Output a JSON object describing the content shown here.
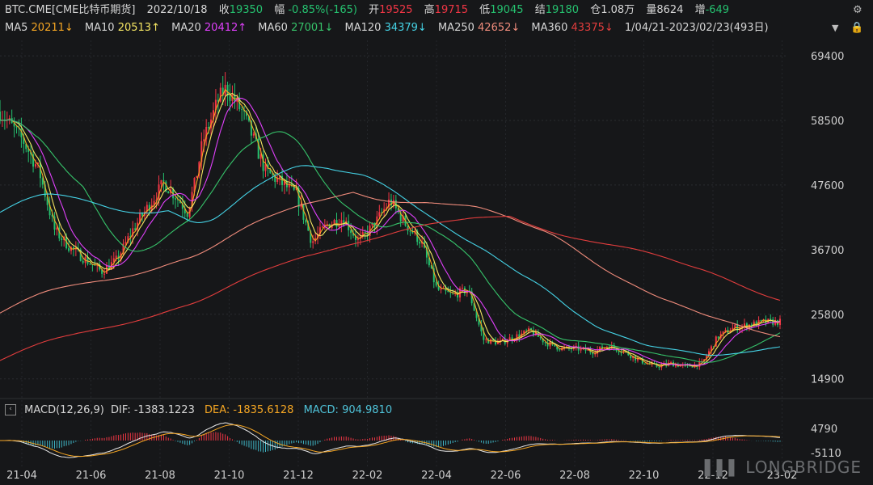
{
  "header": {
    "symbol": "BTC.CME[CME比特币期货]",
    "date": "2022/10/18",
    "close_label": "收",
    "close_value": "19350",
    "change_label": "幅",
    "change_value": "-0.85%(-165)",
    "open_label": "开",
    "open_value": "19525",
    "high_label": "高",
    "high_value": "19715",
    "low_label": "低",
    "low_value": "19045",
    "settle_label": "结",
    "settle_value": "19180",
    "oi_label": "仓",
    "oi_value": "1.08万",
    "vol_label": "量",
    "vol_value": "8624",
    "inc_label": "增",
    "inc_value": "-649"
  },
  "ma_row": {
    "items": [
      {
        "label": "MA5",
        "value": "20211↓",
        "color": "#f5a623"
      },
      {
        "label": "MA10",
        "value": "20513↑",
        "color": "#f5e663"
      },
      {
        "label": "MA20",
        "value": "20412↑",
        "color": "#e040fb"
      },
      {
        "label": "MA60",
        "value": "27001↓",
        "color": "#36c36a"
      },
      {
        "label": "MA120",
        "value": "34379↓",
        "color": "#45d3e6"
      },
      {
        "label": "MA250",
        "value": "42652↓",
        "color": "#f08c7c"
      },
      {
        "label": "MA360",
        "value": "43375↓",
        "color": "#e23d3d"
      }
    ],
    "range": "1/04/21-2023/02/23(493日)"
  },
  "macd": {
    "title": "MACD(12,26,9)",
    "dif_label": "DIF:",
    "dif_value": "-1383.1223",
    "dea_label": "DEA:",
    "dea_value": "-1835.6128",
    "macd_label": "MACD:",
    "macd_value": "904.9810",
    "ytick_top": "4790",
    "ytick_bottom": "-5110"
  },
  "brand": "LONGBRIDGE",
  "colors": {
    "up": "#f23645",
    "down": "#25c16f",
    "background": "#161719"
  },
  "chart_data": {
    "type": "candlestick",
    "ylim": [
      12000,
      72000
    ],
    "yticks": [
      "69400",
      "58500",
      "47600",
      "36700",
      "25800",
      "14900"
    ],
    "ytick_values": [
      69400,
      58500,
      47600,
      36700,
      25800,
      14900
    ],
    "xticks": [
      "21-04",
      "21-06",
      "21-08",
      "21-10",
      "21-12",
      "22-02",
      "22-04",
      "22-06",
      "22-08",
      "22-10",
      "22-12",
      "23-02"
    ],
    "close_path": [
      [
        0,
        60000
      ],
      [
        0.03,
        55000
      ],
      [
        0.05,
        50000
      ],
      [
        0.07,
        40000
      ],
      [
        0.09,
        37000
      ],
      [
        0.11,
        35000
      ],
      [
        0.13,
        33000
      ],
      [
        0.15,
        35000
      ],
      [
        0.17,
        40000
      ],
      [
        0.19,
        44000
      ],
      [
        0.21,
        48000
      ],
      [
        0.23,
        45000
      ],
      [
        0.24,
        43000
      ],
      [
        0.25,
        48000
      ],
      [
        0.26,
        55000
      ],
      [
        0.28,
        62000
      ],
      [
        0.29,
        64000
      ],
      [
        0.31,
        60000
      ],
      [
        0.32,
        57000
      ],
      [
        0.34,
        50000
      ],
      [
        0.36,
        48000
      ],
      [
        0.38,
        46000
      ],
      [
        0.4,
        38000
      ],
      [
        0.42,
        41000
      ],
      [
        0.44,
        42000
      ],
      [
        0.46,
        38000
      ],
      [
        0.48,
        41000
      ],
      [
        0.5,
        45000
      ],
      [
        0.52,
        41000
      ],
      [
        0.54,
        38000
      ],
      [
        0.56,
        30000
      ],
      [
        0.58,
        29000
      ],
      [
        0.6,
        30000
      ],
      [
        0.62,
        21500
      ],
      [
        0.64,
        21000
      ],
      [
        0.66,
        22000
      ],
      [
        0.68,
        23000
      ],
      [
        0.7,
        21000
      ],
      [
        0.72,
        20000
      ],
      [
        0.74,
        20000
      ],
      [
        0.76,
        19500
      ],
      [
        0.78,
        20500
      ],
      [
        0.8,
        19500
      ],
      [
        0.82,
        18000
      ],
      [
        0.84,
        17000
      ],
      [
        0.86,
        17500
      ],
      [
        0.88,
        17000
      ],
      [
        0.9,
        17500
      ],
      [
        0.92,
        22000
      ],
      [
        0.94,
        23500
      ],
      [
        0.96,
        24000
      ],
      [
        0.98,
        24500
      ],
      [
        1.0,
        24500
      ]
    ],
    "series": [
      {
        "name": "MA5",
        "color": "#f5a623"
      },
      {
        "name": "MA10",
        "color": "#f5e663"
      },
      {
        "name": "MA20",
        "color": "#e040fb"
      },
      {
        "name": "MA60",
        "color": "#36c36a"
      },
      {
        "name": "MA120",
        "color": "#45d3e6"
      },
      {
        "name": "MA250",
        "color": "#f08c7c"
      },
      {
        "name": "MA360",
        "color": "#e23d3d"
      }
    ]
  }
}
